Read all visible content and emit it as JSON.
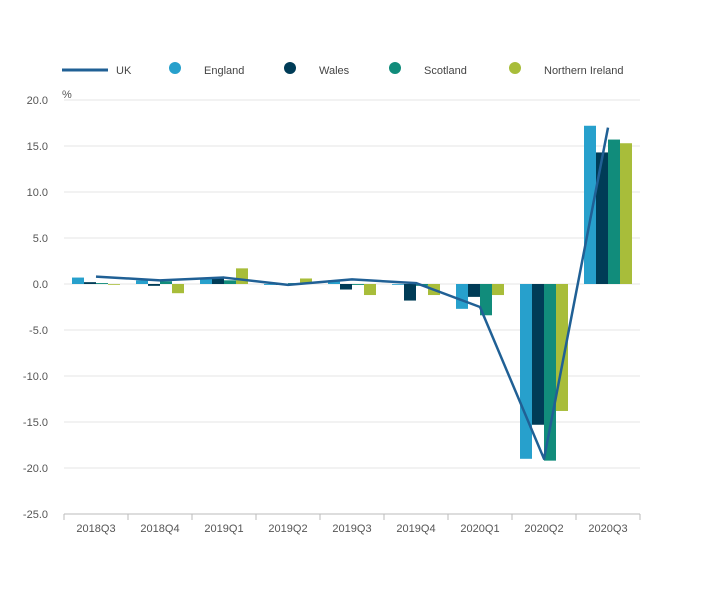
{
  "chart_data": {
    "type": "bar",
    "title": "",
    "xlabel": "",
    "ylabel": "%",
    "ylim": [
      -25,
      20
    ],
    "yticks": [
      "20.0",
      "15.0",
      "10.0",
      "5.0",
      "0.0",
      "-5.0",
      "-10.0",
      "-15.0",
      "-20.0",
      "-25.0"
    ],
    "categories": [
      "2018Q3",
      "2018Q4",
      "2019Q1",
      "2019Q2",
      "2019Q3",
      "2019Q4",
      "2020Q1",
      "2020Q2",
      "2020Q3"
    ],
    "series": [
      {
        "name": "England",
        "kind": "bar",
        "color": "#27a0cc",
        "values": [
          0.7,
          0.4,
          0.6,
          -0.1,
          0.4,
          0.0,
          -2.7,
          -19.0,
          17.2
        ]
      },
      {
        "name": "Wales",
        "kind": "bar",
        "color": "#003c57",
        "values": [
          0.2,
          -0.2,
          0.6,
          -0.1,
          -0.6,
          -1.8,
          -1.4,
          -15.3,
          14.3
        ]
      },
      {
        "name": "Scotland",
        "kind": "bar",
        "color": "#118c7b",
        "values": [
          0.1,
          0.3,
          0.4,
          0.1,
          -0.1,
          -0.2,
          -3.4,
          -19.2,
          15.7
        ]
      },
      {
        "name": "Northern Ireland",
        "kind": "bar",
        "color": "#a8bd3a",
        "values": [
          0.0,
          -1.0,
          1.7,
          0.6,
          -1.2,
          -1.2,
          -1.2,
          -13.8,
          15.3
        ]
      },
      {
        "name": "UK",
        "kind": "line",
        "color": "#206095",
        "values": [
          0.8,
          0.4,
          0.7,
          -0.1,
          0.5,
          0.1,
          -2.5,
          -19.0,
          17.0
        ]
      }
    ],
    "legend_order": [
      "UK",
      "England",
      "Wales",
      "Scotland",
      "Northern Ireland"
    ],
    "legend_position": "top",
    "grid": true
  }
}
